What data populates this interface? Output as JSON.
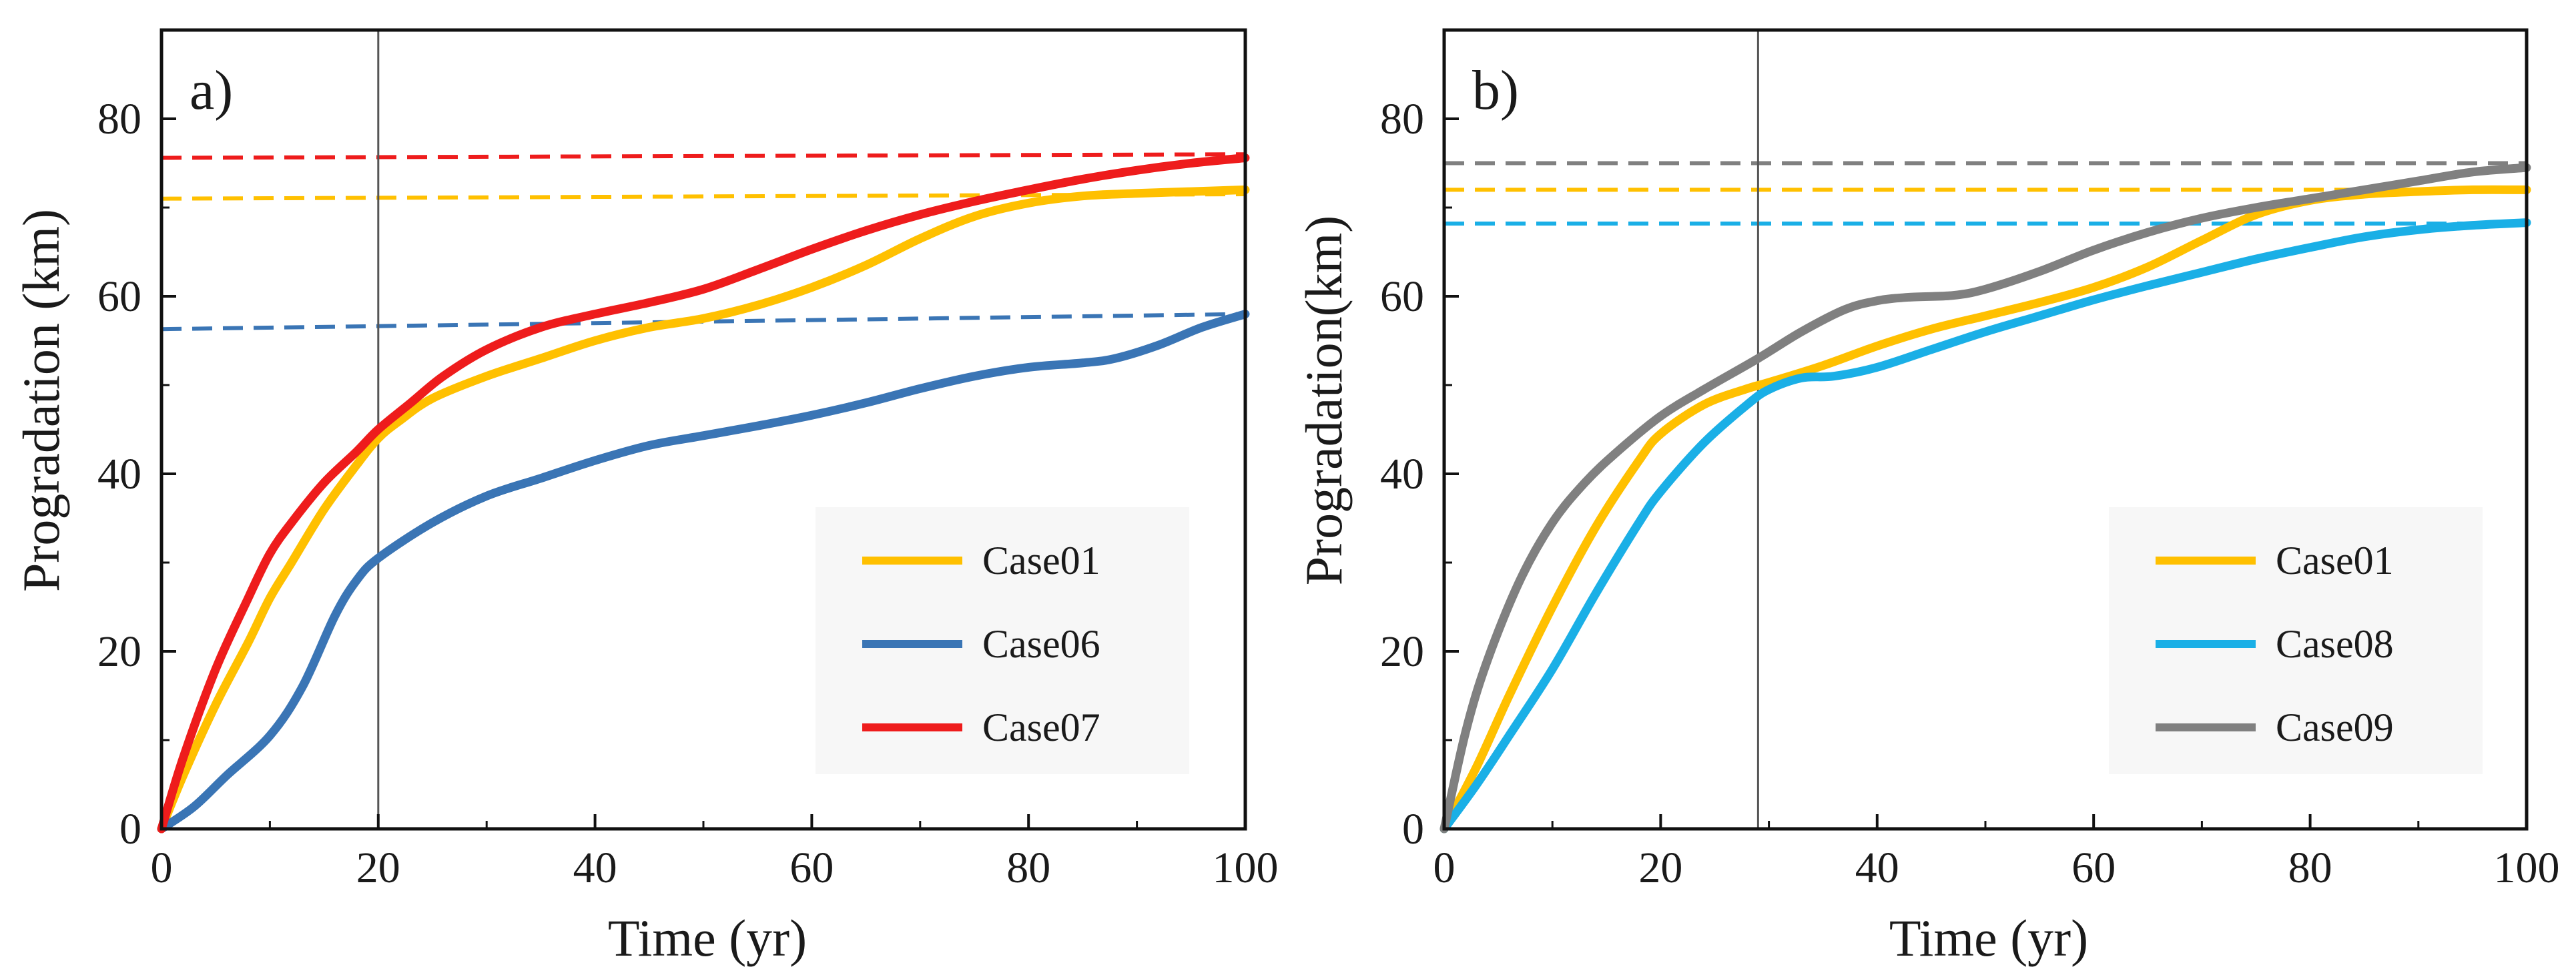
{
  "chart_data": [
    {
      "type": "line",
      "panel_label": "a)",
      "xlabel": "Time (yr)",
      "ylabel": "Progradation (km)",
      "xlim": [
        0,
        100
      ],
      "ylim": [
        0,
        90
      ],
      "xticks": [
        0,
        20,
        40,
        60,
        80,
        100
      ],
      "yticks": [
        0,
        20,
        40,
        60,
        80
      ],
      "xtick_labels": [
        "0",
        "20",
        "40",
        "60",
        "80",
        "100"
      ],
      "ytick_labels": [
        "0",
        "20",
        "40",
        "60",
        "80"
      ],
      "reference_vline_x": 20,
      "legend_position": "bottom-right",
      "series": [
        {
          "name": "Case01",
          "color": "#FFC000",
          "x": [
            0,
            2,
            5,
            8,
            10,
            12,
            15,
            18,
            20,
            22,
            25,
            30,
            35,
            40,
            45,
            50,
            55,
            60,
            65,
            70,
            75,
            80,
            85,
            90,
            95,
            100
          ],
          "y": [
            0,
            6,
            14,
            21,
            26,
            30,
            36,
            41,
            44,
            46,
            48.5,
            51,
            53,
            55,
            56.5,
            57.5,
            59,
            61,
            63.5,
            66.5,
            69,
            70.5,
            71.3,
            71.6,
            71.8,
            72
          ]
        },
        {
          "name": "Case06",
          "color": "#3A75B5",
          "x": [
            0,
            3,
            6,
            10,
            13,
            16,
            18,
            20,
            25,
            30,
            35,
            40,
            45,
            50,
            55,
            60,
            65,
            70,
            75,
            80,
            85,
            88,
            92,
            96,
            100
          ],
          "y": [
            0,
            2.5,
            6,
            10.5,
            16,
            24,
            28,
            30.5,
            34.5,
            37.5,
            39.5,
            41.5,
            43.2,
            44.3,
            45.4,
            46.6,
            48,
            49.6,
            51,
            52,
            52.5,
            53,
            54.5,
            56.5,
            58
          ]
        },
        {
          "name": "Case07",
          "color": "#EE1C1C",
          "x": [
            0,
            2,
            5,
            8,
            10,
            12,
            15,
            18,
            20,
            23,
            26,
            30,
            35,
            40,
            45,
            50,
            55,
            60,
            65,
            70,
            75,
            80,
            85,
            90,
            95,
            100
          ],
          "y": [
            0,
            8,
            18,
            26,
            31,
            34.5,
            39,
            42.5,
            45,
            48,
            51,
            54,
            56.5,
            58,
            59.3,
            60.8,
            63,
            65.3,
            67.4,
            69.2,
            70.7,
            72,
            73.2,
            74.2,
            75,
            75.6
          ]
        }
      ],
      "dashed_lines": [
        {
          "name": "Case07 final",
          "color": "#EE1C1C",
          "y_start": 75.6,
          "y_end": 76
        },
        {
          "name": "Case01 final",
          "color": "#FFC000",
          "y_start": 71,
          "y_end": 71.5
        },
        {
          "name": "Case06 final",
          "color": "#3A75B5",
          "y_start": 56.3,
          "y_end": 58
        }
      ]
    },
    {
      "type": "line",
      "panel_label": "b)",
      "xlabel": "Time (yr)",
      "ylabel": "Progradation(km)",
      "xlim": [
        0,
        100
      ],
      "ylim": [
        0,
        90
      ],
      "xticks": [
        0,
        20,
        40,
        60,
        80,
        100
      ],
      "yticks": [
        0,
        20,
        40,
        60,
        80
      ],
      "xtick_labels": [
        "0",
        "20",
        "40",
        "60",
        "80",
        "100"
      ],
      "ytick_labels": [
        "0",
        "20",
        "40",
        "60",
        "80"
      ],
      "reference_vline_x": 29,
      "legend_position": "bottom-right",
      "series": [
        {
          "name": "Case01",
          "color": "#FFC000",
          "x": [
            0,
            3,
            6,
            10,
            14,
            18,
            20,
            24,
            28,
            30,
            35,
            40,
            45,
            50,
            55,
            60,
            65,
            70,
            75,
            80,
            85,
            90,
            95,
            100
          ],
          "y": [
            0,
            7,
            15,
            25,
            34,
            41.5,
            44.5,
            47.8,
            49.6,
            50.3,
            52.2,
            54.4,
            56.3,
            57.8,
            59.3,
            61,
            63.3,
            66.3,
            69.2,
            70.8,
            71.5,
            71.8,
            72,
            72
          ]
        },
        {
          "name": "Case08",
          "color": "#1AAFE6",
          "x": [
            0,
            3,
            6,
            10,
            14,
            18,
            20,
            24,
            28,
            30,
            33,
            36,
            40,
            45,
            50,
            55,
            60,
            65,
            70,
            75,
            80,
            85,
            90,
            95,
            100
          ],
          "y": [
            0,
            5,
            10.5,
            18,
            26.5,
            34.5,
            38,
            43.5,
            47.8,
            49.5,
            50.8,
            51,
            52,
            54,
            56,
            57.8,
            59.6,
            61.2,
            62.7,
            64.2,
            65.5,
            66.7,
            67.5,
            68,
            68.3
          ]
        },
        {
          "name": "Case09",
          "color": "#808080",
          "x": [
            0,
            2,
            4,
            7,
            10,
            13,
            16,
            20,
            24,
            29,
            33,
            37,
            40,
            43,
            47,
            50,
            55,
            60,
            65,
            70,
            75,
            80,
            85,
            90,
            95,
            100
          ],
          "y": [
            0,
            11,
            19,
            28,
            34.5,
            39,
            42.5,
            46.5,
            49.5,
            53,
            56,
            58.5,
            59.5,
            59.9,
            60.1,
            60.8,
            62.8,
            65.2,
            67.2,
            68.8,
            70,
            71,
            72,
            73,
            74,
            74.5
          ]
        }
      ],
      "dashed_lines": [
        {
          "name": "Case09 final",
          "color": "#808080",
          "y_start": 75,
          "y_end": 75
        },
        {
          "name": "Case01 final",
          "color": "#FFC000",
          "y_start": 72,
          "y_end": 72
        },
        {
          "name": "Case08 final",
          "color": "#1AAFE6",
          "y_start": 68.2,
          "y_end": 68.2
        }
      ]
    }
  ]
}
